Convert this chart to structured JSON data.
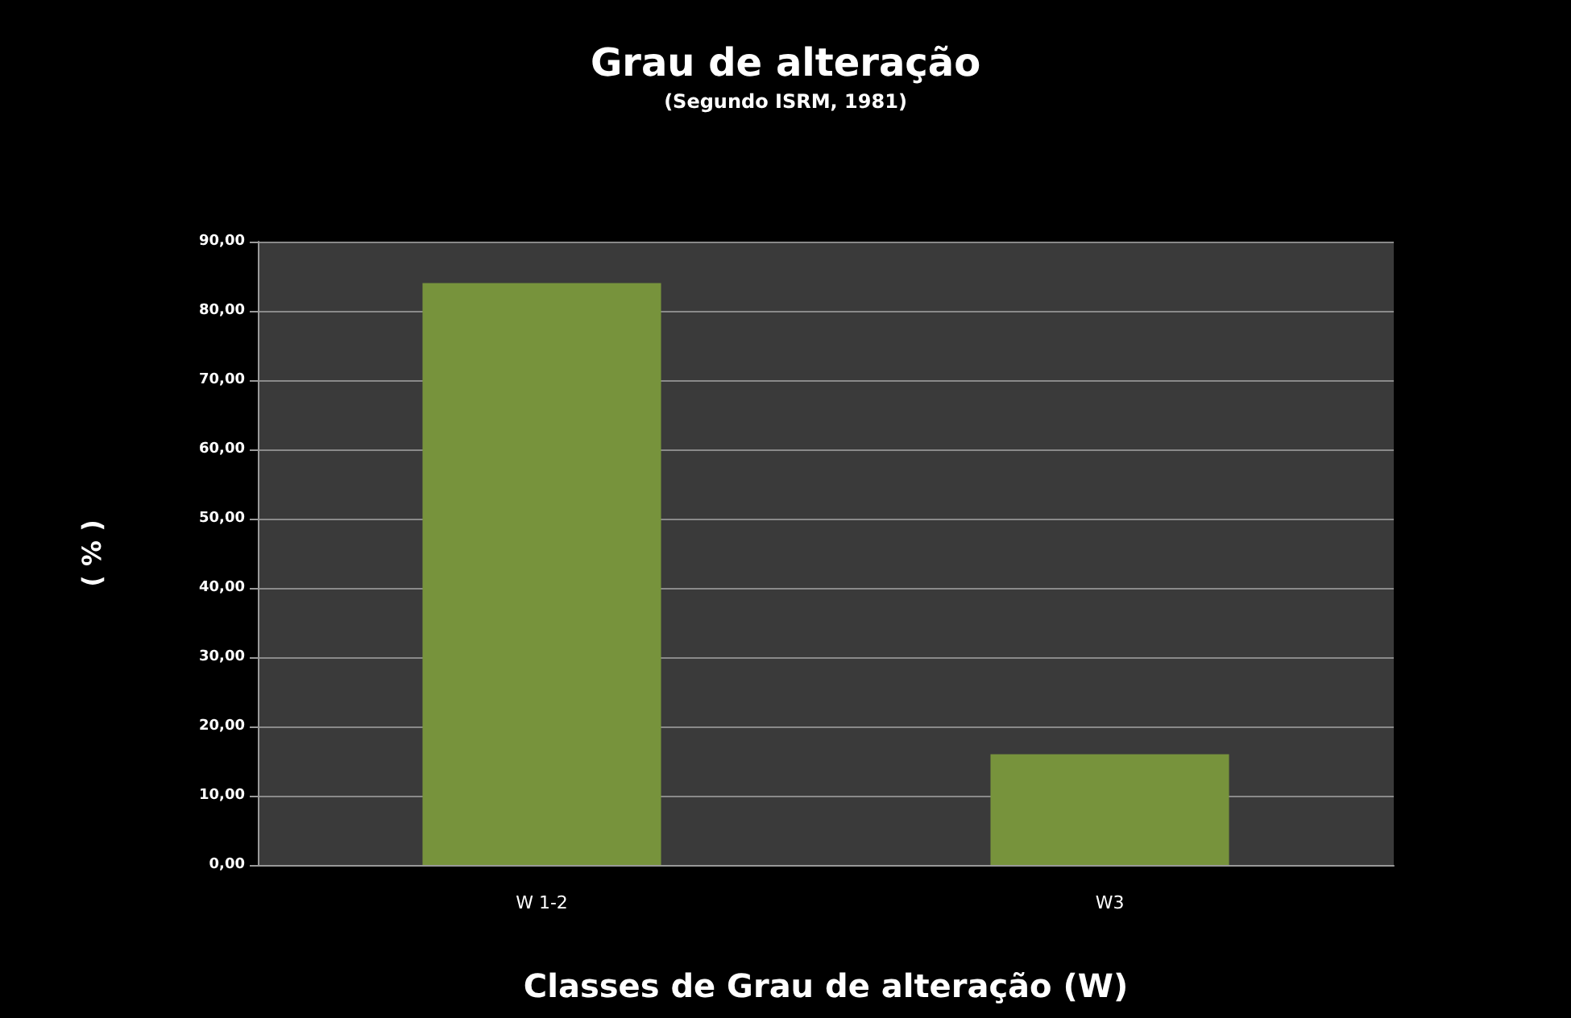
{
  "chart_data": {
    "type": "bar",
    "title": "Grau de alteração",
    "subtitle": "(Segundo ISRM, 1981)",
    "xlabel": "Classes de Grau de alteração (W)",
    "ylabel": "( % )",
    "categories": [
      "W 1-2",
      "W3"
    ],
    "values": [
      84,
      16
    ],
    "color": "#77933c",
    "ylim": [
      0,
      90
    ],
    "yticks": [
      {
        "value": 0,
        "label": "0,00"
      },
      {
        "value": 10,
        "label": "10,00"
      },
      {
        "value": 20,
        "label": "20,00"
      },
      {
        "value": 30,
        "label": "30,00"
      },
      {
        "value": 40,
        "label": "40,00"
      },
      {
        "value": 50,
        "label": "50,00"
      },
      {
        "value": 60,
        "label": "60,00"
      },
      {
        "value": 70,
        "label": "70,00"
      },
      {
        "value": 80,
        "label": "80,00"
      },
      {
        "value": 90,
        "label": "90,00"
      }
    ],
    "grid": "y"
  }
}
